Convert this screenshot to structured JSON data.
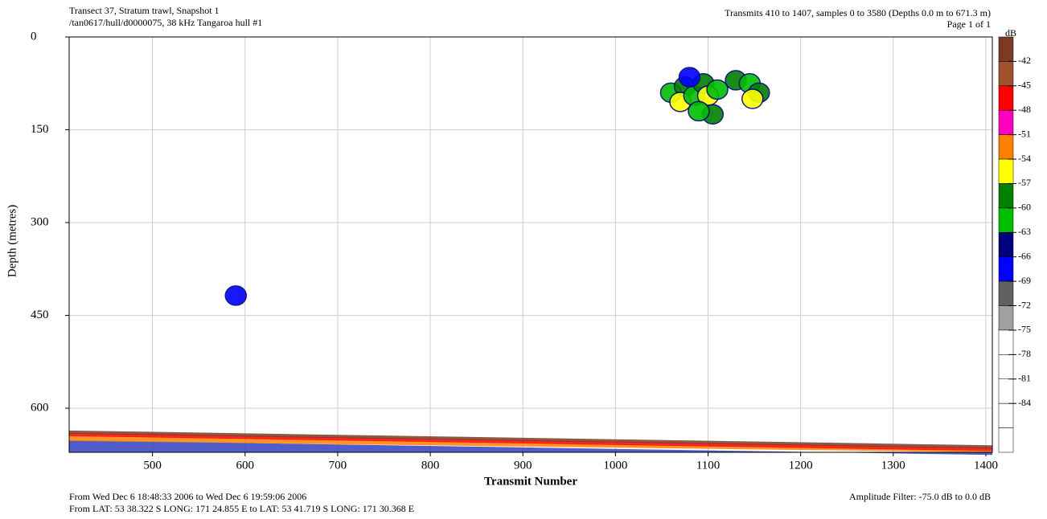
{
  "chart_data": {
    "type": "echogram",
    "title": "Transect 37, Stratum trawl, Snapshot 1",
    "subtitle": "/tan0617/hull/d0000075, 38 kHz Tangaroa hull #1",
    "info_right": [
      "Transmits 410 to 1407, samples 0 to 3580 (Depths 0.0 m to 671.3 m)",
      "Page 1 of 1"
    ],
    "footer_left": [
      "From Wed Dec  6 18:48:33 2006 to Wed Dec  6 19:59:06 2006",
      "From LAT: 53 38.322 S   LONG: 171 24.855 E to LAT: 53 41.719 S   LONG: 171 30.368 E"
    ],
    "footer_right": "Amplitude Filter: -75.0 dB to  0.0 dB",
    "x_label": "Transmit Number",
    "y_label": "Depth (metres)",
    "xlim": [
      410,
      1407
    ],
    "xticks": [
      500,
      600,
      700,
      800,
      900,
      1000,
      1100,
      1200,
      1300,
      1400
    ],
    "ylim": [
      0,
      671.3
    ],
    "yticks": [
      0,
      150,
      300,
      450,
      600
    ],
    "y_inverted": true,
    "grid": true,
    "colorbar": {
      "title": "dB",
      "lim": [
        -90,
        -39
      ],
      "ticks": [
        -42,
        -45,
        -48,
        -51,
        -54,
        -57,
        -60,
        -63,
        -66,
        -69,
        -72,
        -75,
        -78,
        -81,
        -84
      ],
      "colors": [
        "#7a3b22",
        "#a0522d",
        "#ff0000",
        "#ff00c0",
        "#ff8000",
        "#ffff00",
        "#007f00",
        "#00bf00",
        "#00007f",
        "#0000ff",
        "#606060",
        "#a0a0a0",
        "#ffffff",
        "#ffffff",
        "#ffffff",
        "#ffffff",
        "#ffffff"
      ]
    },
    "points": {
      "x": [
        1060,
        1075,
        1070,
        1085,
        1095,
        1100,
        1110,
        1105,
        1090,
        1130,
        1145,
        1155,
        1148,
        1080,
        590
      ],
      "y": [
        90,
        80,
        105,
        95,
        75,
        95,
        85,
        125,
        120,
        70,
        75,
        90,
        100,
        65,
        418
      ],
      "values": [
        -61,
        -58,
        -55,
        -61,
        -58,
        -55,
        -61,
        -58,
        -61,
        -58,
        -61,
        -58,
        -55,
        -67,
        -67
      ]
    },
    "bottom": {
      "x": [
        410,
        1407
      ],
      "y": [
        636,
        660
      ]
    }
  }
}
